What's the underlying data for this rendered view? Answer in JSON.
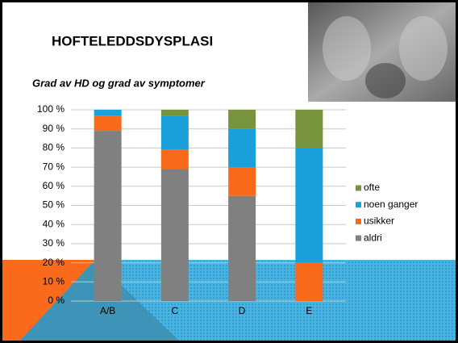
{
  "chart_data": {
    "type": "bar",
    "stacked": true,
    "title": "HOFTELEDDSDYSPLASI",
    "subtitle": "Grad av HD og grad av symptomer",
    "categories": [
      "A/B",
      "C",
      "D",
      "E"
    ],
    "series": [
      {
        "name": "aldri",
        "color": "#808080",
        "values": [
          89,
          69,
          55,
          0
        ]
      },
      {
        "name": "usikker",
        "color": "#f96a1b",
        "values": [
          8,
          10,
          15,
          20
        ]
      },
      {
        "name": "noen ganger",
        "color": "#1aa0db",
        "values": [
          3,
          18,
          20,
          60
        ]
      },
      {
        "name": "ofte",
        "color": "#77933c",
        "values": [
          0,
          3,
          10,
          20
        ]
      }
    ],
    "ylim": [
      0,
      100
    ],
    "yticks": [
      {
        "value": 0,
        "label": "0 %"
      },
      {
        "value": 10,
        "label": "10 %"
      },
      {
        "value": 20,
        "label": "20 %"
      },
      {
        "value": 30,
        "label": "30 %"
      },
      {
        "value": 40,
        "label": "40 %"
      },
      {
        "value": 50,
        "label": "50 %"
      },
      {
        "value": 60,
        "label": "60 %"
      },
      {
        "value": 70,
        "label": "70 %"
      },
      {
        "value": 80,
        "label": "80 %"
      },
      {
        "value": 90,
        "label": "90 %"
      },
      {
        "value": 100,
        "label": "100 %"
      }
    ],
    "grid": true,
    "legend": "right"
  }
}
